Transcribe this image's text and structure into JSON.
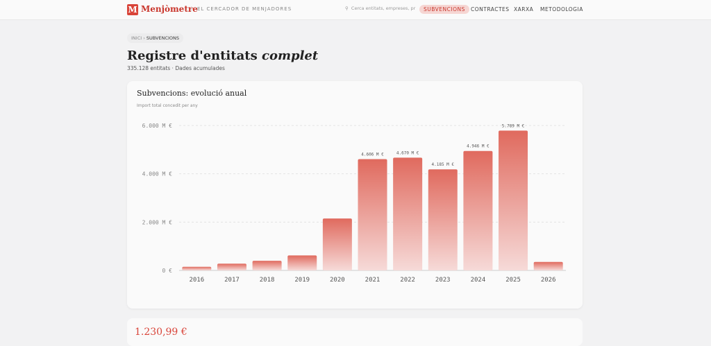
{
  "header": {
    "logo": "M",
    "brand": "Menjòmetre",
    "tagline": "EL CERCADOR DE MENJADORES",
    "search_placeholder": "Cerca entitats, empreses, pr",
    "nav": [
      "SUBVENCIONS",
      "CONTRACTES",
      "XARXA",
      "METODOLOGIA"
    ]
  },
  "breadcrumb": [
    "INICI",
    "SUBVENCIONS"
  ],
  "page": {
    "title_main": "Registre d'entitats",
    "title_emphasis": "complet",
    "subtitle": "335.128 entitats · Dades acumulades",
    "next_card_value": "1.230,99 €"
  },
  "chart_data": {
    "type": "bar",
    "title": "Subvencions: evolució anual",
    "subtitle": "Import total concedit per any",
    "categories": [
      "2016",
      "2017",
      "2018",
      "2019",
      "2020",
      "2021",
      "2022",
      "2023",
      "2024",
      "2025",
      "2026"
    ],
    "values": [
      150,
      280,
      400,
      620,
      2150,
      4606,
      4670,
      4185,
      4946,
      5789,
      350
    ],
    "value_labels": [
      null,
      null,
      null,
      null,
      null,
      "4.606 M €",
      "4.670 M €",
      "4.185 M €",
      "4.946 M €",
      "5.789 M €",
      null
    ],
    "color": "#e06a5e",
    "ylim": [
      0,
      6000
    ],
    "yticks": [
      {
        "value": 0,
        "label": "0 €"
      },
      {
        "value": 2000,
        "label": "2.000 M €"
      },
      {
        "value": 4000,
        "label": "4.000 M €"
      },
      {
        "value": 6000,
        "label": "6.000 M €"
      }
    ],
    "grid": true
  }
}
